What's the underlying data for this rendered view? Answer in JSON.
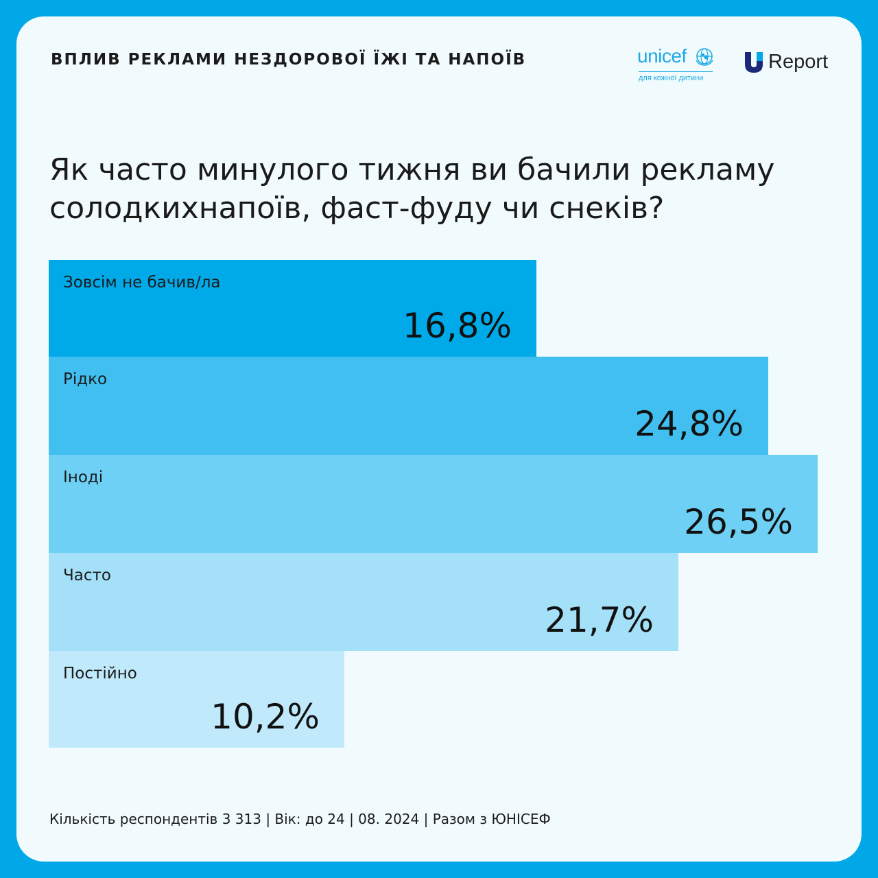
{
  "header": {
    "title": "ВПЛИВ РЕКЛАМИ НЕЗДОРОВОЇ ЇЖІ ТА НАПОЇВ",
    "unicef_word": "unicef",
    "unicef_tagline": "для кожної дитини",
    "ureport_letter": "U",
    "ureport_word": "Report"
  },
  "question": {
    "line1": "Як часто минулого тижня ви бачили рекламу",
    "line2": "солодкихнапоїв, фаст-фуду чи снеків?"
  },
  "chart_data": {
    "type": "bar",
    "orientation": "horizontal",
    "categories": [
      "Зовсім не бачив/ла",
      "Рідко",
      "Іноді",
      "Часто",
      "Постійно"
    ],
    "values": [
      16.8,
      24.8,
      26.5,
      21.7,
      10.2
    ],
    "value_labels": [
      "16,8%",
      "24,8%",
      "26,5%",
      "21,7%",
      "10,2%"
    ],
    "colors": [
      "#00a9e8",
      "#40bff0",
      "#6dd0f4",
      "#a4e0f8",
      "#c0eafb"
    ],
    "unit": "%",
    "grid": false,
    "legend": "none"
  },
  "footer": {
    "text": "Кількість респондентів 3 313 | Вік: до 24 | 08. 2024 | Разом з ЮНІСЕФ"
  }
}
